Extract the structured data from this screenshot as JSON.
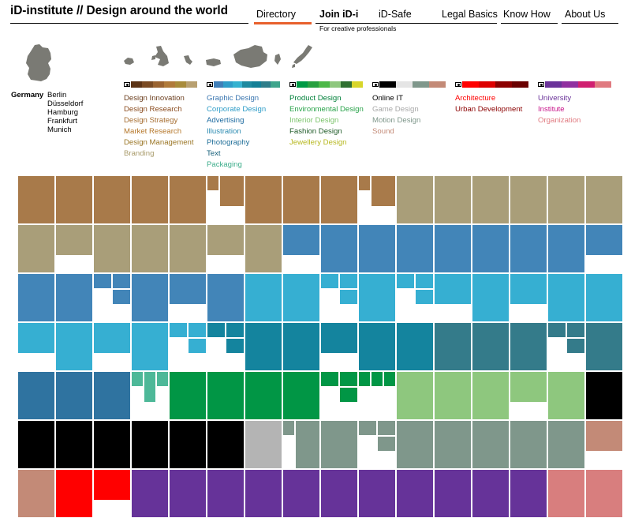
{
  "header": {
    "site_title": "iD-institute // Design around the world"
  },
  "nav": {
    "items": [
      {
        "label": "Directory"
      },
      {
        "label": "Join iD-i",
        "sub": "For creative professionals"
      },
      {
        "label": "iD-Safe"
      },
      {
        "label": "Legal Basics"
      },
      {
        "label": "Know How"
      },
      {
        "label": "About Us"
      }
    ],
    "active_color": "#e8602c"
  },
  "location": {
    "country": "Germany",
    "cities": [
      "Berlin",
      "Düsseldorf",
      "Hamburg",
      "Frankfurt",
      "Munich"
    ]
  },
  "legend": [
    {
      "swatches": [
        "#5c3315",
        "#7a4a22",
        "#9a6330",
        "#b07a3a",
        "#a88b3a",
        "#b8a070"
      ],
      "items": [
        {
          "label": "Design Innovation",
          "color": "#6b3e1e"
        },
        {
          "label": "Design Research",
          "color": "#8b4d20"
        },
        {
          "label": "Design Strategy",
          "color": "#a66e32"
        },
        {
          "label": "Market Research",
          "color": "#b5772a"
        },
        {
          "label": "Design Management",
          "color": "#9a7524"
        },
        {
          "label": "Branding",
          "color": "#a89a6a"
        }
      ]
    },
    {
      "swatches": [
        "#3f7fb8",
        "#2f9dc8",
        "#35b2d0",
        "#1d8aa0",
        "#137f96",
        "#2e7d8a",
        "#3fa58c"
      ],
      "items": [
        {
          "label": "Graphic Design",
          "color": "#3a76b0"
        },
        {
          "label": "Corporate Design",
          "color": "#2f9dc8"
        },
        {
          "label": "Advertising",
          "color": "#1c6aa0"
        },
        {
          "label": "Illustration",
          "color": "#2a8ab0"
        },
        {
          "label": "Photography",
          "color": "#1f6e98"
        },
        {
          "label": "Text",
          "color": "#155f7a"
        },
        {
          "label": "Packaging",
          "color": "#3fae8c"
        }
      ]
    },
    {
      "swatches": [
        "#009944",
        "#27a040",
        "#4cb848",
        "#8ec77e",
        "#2f7030",
        "#d8d62a"
      ],
      "items": [
        {
          "label": "Product Design",
          "color": "#00803a"
        },
        {
          "label": "Environmental Design",
          "color": "#29a34a"
        },
        {
          "label": "Interior Design",
          "color": "#7cc46c"
        },
        {
          "label": "Fashion Design",
          "color": "#1f5a28"
        },
        {
          "label": "Jewellery Design",
          "color": "#b7b820"
        }
      ]
    },
    {
      "swatches": [
        "#000000",
        "#e5e5e5",
        "#7f978b",
        "#c38a77"
      ],
      "items": [
        {
          "label": "Online IT",
          "color": "#000000"
        },
        {
          "label": "Game Design",
          "color": "#a8a8a8"
        },
        {
          "label": "Motion Design",
          "color": "#7f978b"
        },
        {
          "label": "Sound",
          "color": "#c38a77"
        }
      ]
    },
    {
      "swatches": [
        "#ff0000",
        "#dd0000",
        "#8b0000",
        "#6a0000"
      ],
      "items": [
        {
          "label": "Architecture",
          "color": "#ff0000"
        },
        {
          "label": "Urban Development",
          "color": "#8b0000"
        }
      ]
    },
    {
      "swatches": [
        "#6a3399",
        "#9030a0",
        "#d02070",
        "#e07a80"
      ],
      "items": [
        {
          "label": "University",
          "color": "#6a3399"
        },
        {
          "label": "Institute",
          "color": "#c8148a"
        },
        {
          "label": "Organization",
          "color": "#e07a80"
        }
      ]
    }
  ],
  "grid_colors": {
    "brown": "#a87a4a",
    "tan": "#a99e79",
    "blue": "#4285b8",
    "sky": "#36afd2",
    "teal": "#14849e",
    "slate": "#347b8a",
    "navy": "#2f73a0",
    "mint": "#4db898",
    "green": "#019645",
    "lightgreen": "#8ec77e",
    "black": "#000000",
    "gray": "#b4b4b4",
    "sage": "#7f978b",
    "terracotta": "#c38a77",
    "red": "#ff0000",
    "purple": "#663399",
    "pink": "#d87e7e"
  }
}
